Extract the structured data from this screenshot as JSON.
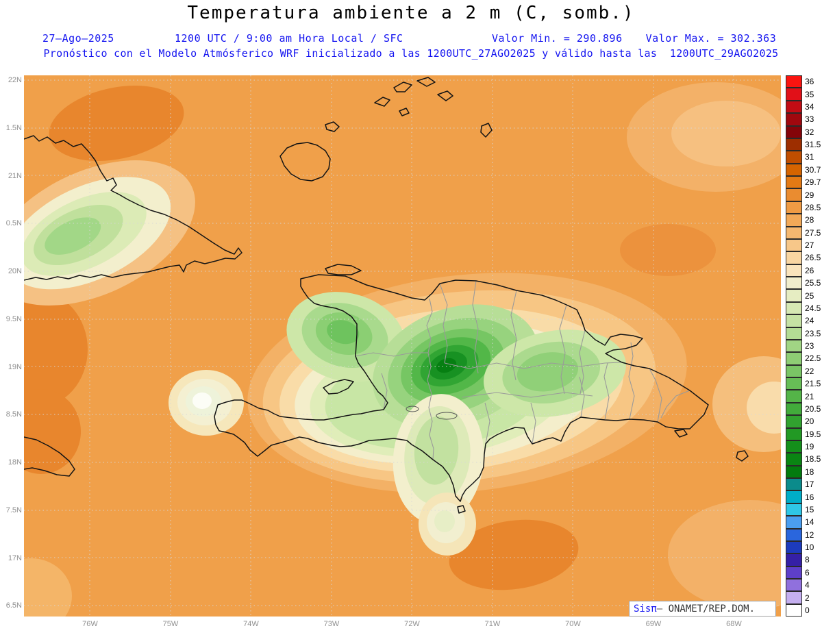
{
  "header": {
    "title": "Temperatura ambiente a 2 m (C, somb.)",
    "date": "27–Ago–2025",
    "time_line": "1200 UTC / 9:00 am Hora Local / SFC",
    "valor_min": "Valor Min. = 290.896",
    "valor_max": "Valor Max. = 302.363",
    "forecast_line": "Pronóstico con el Modelo Atmósferico WRF inicializado a las 1200UTC_27AGO2025 y válido hasta las  1200UTC_29AGO2025"
  },
  "colors": {
    "header_blue": "#1414f0",
    "sea_base_orange": "#f0a04a",
    "tick_gray": "#8f8f8f"
  },
  "axes": {
    "lat_labels": [
      "22N",
      "1.5N",
      "21N",
      "0.5N",
      "20N",
      "9.5N",
      "19N",
      "8.5N",
      "18N",
      "7.5N",
      "17N",
      "6.5N"
    ],
    "lon_labels": [
      "76W",
      "75W",
      "74W",
      "73W",
      "72W",
      "71W",
      "70W",
      "69W",
      "68W"
    ]
  },
  "colorbar": {
    "entries": [
      {
        "label": "36",
        "color": "#fa1410"
      },
      {
        "label": "35",
        "color": "#e11018"
      },
      {
        "label": "34",
        "color": "#c20c14"
      },
      {
        "label": "33",
        "color": "#a0080e"
      },
      {
        "label": "32",
        "color": "#840409"
      },
      {
        "label": "31.5",
        "color": "#9d2e00"
      },
      {
        "label": "31",
        "color": "#c04e00"
      },
      {
        "label": "30.7",
        "color": "#d56400"
      },
      {
        "label": "29.7",
        "color": "#e47a14"
      },
      {
        "label": "29",
        "color": "#ea8c30"
      },
      {
        "label": "28.5",
        "color": "#ef9b44"
      },
      {
        "label": "28",
        "color": "#f2a958"
      },
      {
        "label": "27.5",
        "color": "#f5b870"
      },
      {
        "label": "27",
        "color": "#f7c789"
      },
      {
        "label": "26.5",
        "color": "#f9d6a2"
      },
      {
        "label": "26",
        "color": "#fae4bc"
      },
      {
        "label": "25.5",
        "color": "#f2eecd"
      },
      {
        "label": "25",
        "color": "#e6edc2"
      },
      {
        "label": "24.5",
        "color": "#d6e8b3"
      },
      {
        "label": "24",
        "color": "#c6e2a4"
      },
      {
        "label": "23.5",
        "color": "#b4dc94"
      },
      {
        "label": "23",
        "color": "#a1d584"
      },
      {
        "label": "22.5",
        "color": "#8ecd74"
      },
      {
        "label": "22",
        "color": "#7ac565"
      },
      {
        "label": "21.5",
        "color": "#67bd56"
      },
      {
        "label": "21",
        "color": "#54b448"
      },
      {
        "label": "20.5",
        "color": "#42ab3b"
      },
      {
        "label": "20",
        "color": "#31a22f"
      },
      {
        "label": "19.5",
        "color": "#229924"
      },
      {
        "label": "19",
        "color": "#148f1b"
      },
      {
        "label": "18.5",
        "color": "#0a8513"
      },
      {
        "label": "18",
        "color": "#037b0e"
      },
      {
        "label": "17",
        "color": "#0b8b8b"
      },
      {
        "label": "16",
        "color": "#00adc8"
      },
      {
        "label": "15",
        "color": "#2fc7e6"
      },
      {
        "label": "14",
        "color": "#4b9ef0"
      },
      {
        "label": "12",
        "color": "#2a66dd"
      },
      {
        "label": "10",
        "color": "#1d3bbd"
      },
      {
        "label": "8",
        "color": "#3520a6"
      },
      {
        "label": "6",
        "color": "#5e3fc9"
      },
      {
        "label": "4",
        "color": "#9070dd"
      },
      {
        "label": "2",
        "color": "#c5aff0"
      },
      {
        "label": "0",
        "color": "#ffffff"
      }
    ]
  },
  "attribution": {
    "brand": "Sisπ",
    "dash": "– ",
    "org": "ONAMET/REP.DOM."
  }
}
